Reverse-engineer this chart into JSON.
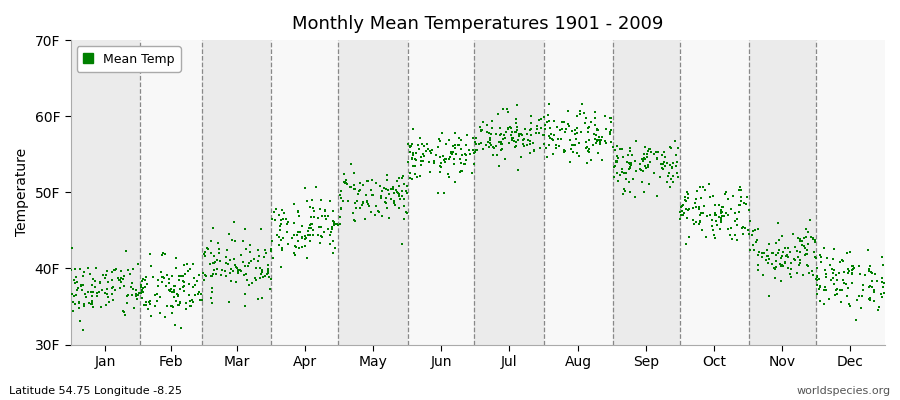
{
  "title": "Monthly Mean Temperatures 1901 - 2009",
  "ylabel": "Temperature",
  "xlabel_labels": [
    "Jan",
    "Feb",
    "Mar",
    "Apr",
    "May",
    "Jun",
    "Jul",
    "Aug",
    "Sep",
    "Oct",
    "Nov",
    "Dec"
  ],
  "bottom_left": "Latitude 54.75 Longitude -8.25",
  "bottom_right": "worldspecies.org",
  "legend_label": "Mean Temp",
  "dot_color": "#008000",
  "bg_color": "#ffffff",
  "plot_bg_color": "#ffffff",
  "band_color_odd": "#ebebeb",
  "band_color_even": "#f8f8f8",
  "ylim": [
    30,
    70
  ],
  "yticks": [
    30,
    40,
    50,
    60,
    70
  ],
  "ytick_labels": [
    "30F",
    "40F",
    "50F",
    "60F",
    "70F"
  ],
  "years": 109,
  "monthly_means_F": [
    37.2,
    37.0,
    40.5,
    45.5,
    49.5,
    54.5,
    57.5,
    57.2,
    53.5,
    47.5,
    42.0,
    38.5
  ],
  "monthly_stds_F": [
    2.0,
    2.3,
    2.0,
    2.0,
    1.8,
    1.6,
    1.6,
    1.7,
    1.8,
    2.0,
    2.0,
    2.0
  ],
  "seed": 42
}
